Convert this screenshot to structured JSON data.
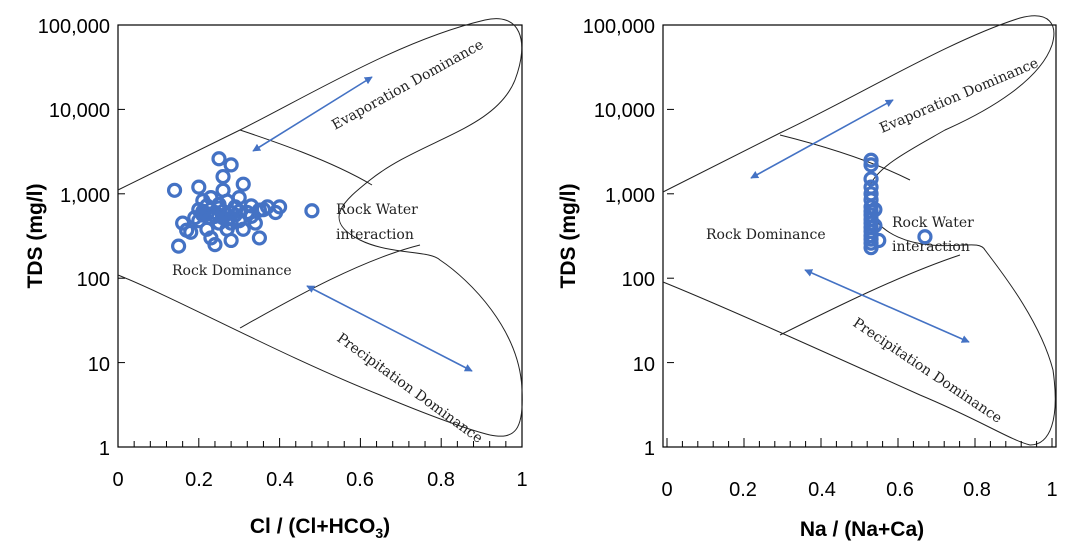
{
  "chart_data": [
    {
      "type": "scatter",
      "title": "",
      "xlabel_main": "Cl / (Cl+HCO",
      "xlabel_sub": "3",
      "xlabel_close": ")",
      "ylabel": "TDS (mg/l)",
      "xlim": [
        0,
        1
      ],
      "ylim": [
        1,
        100000
      ],
      "yscale": "log",
      "x_ticks": [
        0,
        0.2,
        0.4,
        0.6,
        0.8,
        1
      ],
      "x_tick_labels": [
        "0",
        "0.2",
        "0.4",
        "0.6",
        "0.8",
        "1"
      ],
      "y_ticks": [
        1,
        10,
        100,
        1000,
        10000,
        100000
      ],
      "y_tick_labels": [
        "1",
        "10",
        "100",
        "1,000",
        "10,000",
        "100,000"
      ],
      "marker_color": "#4472c4",
      "region_labels": {
        "evaporation": "Evaporation Dominance",
        "rock_water": [
          "Rock Water",
          "interaction"
        ],
        "rock": "Rock Dominance",
        "precipitation": "Precipitation Dominance"
      },
      "points": [
        [
          0.14,
          1100
        ],
        [
          0.15,
          240
        ],
        [
          0.16,
          450
        ],
        [
          0.17,
          370
        ],
        [
          0.18,
          350
        ],
        [
          0.19,
          520
        ],
        [
          0.2,
          1200
        ],
        [
          0.2,
          650
        ],
        [
          0.2,
          480
        ],
        [
          0.21,
          830
        ],
        [
          0.21,
          560
        ],
        [
          0.22,
          380
        ],
        [
          0.22,
          720
        ],
        [
          0.23,
          900
        ],
        [
          0.23,
          300
        ],
        [
          0.24,
          600
        ],
        [
          0.24,
          250
        ],
        [
          0.25,
          2600
        ],
        [
          0.25,
          450
        ],
        [
          0.25,
          750
        ],
        [
          0.26,
          1600
        ],
        [
          0.26,
          1100
        ],
        [
          0.26,
          520
        ],
        [
          0.27,
          380
        ],
        [
          0.27,
          820
        ],
        [
          0.28,
          2200
        ],
        [
          0.28,
          280
        ],
        [
          0.28,
          600
        ],
        [
          0.29,
          700
        ],
        [
          0.3,
          480
        ],
        [
          0.3,
          900
        ],
        [
          0.31,
          1300
        ],
        [
          0.31,
          380
        ],
        [
          0.32,
          600
        ],
        [
          0.33,
          720
        ],
        [
          0.34,
          450
        ],
        [
          0.35,
          300
        ],
        [
          0.36,
          650
        ],
        [
          0.37,
          700
        ],
        [
          0.39,
          600
        ],
        [
          0.4,
          700
        ],
        [
          0.48,
          630
        ],
        [
          0.22,
          580
        ],
        [
          0.24,
          540
        ],
        [
          0.27,
          500
        ],
        [
          0.29,
          560
        ],
        [
          0.23,
          520
        ],
        [
          0.26,
          620
        ],
        [
          0.3,
          620
        ],
        [
          0.21,
          620
        ],
        [
          0.25,
          680
        ],
        [
          0.28,
          450
        ],
        [
          0.33,
          540
        ],
        [
          0.35,
          640
        ]
      ]
    },
    {
      "type": "scatter",
      "title": "",
      "xlabel_main": "Na / (Na+Ca)",
      "xlabel_sub": "",
      "xlabel_close": "",
      "ylabel": "TDS (mg/l)",
      "xlim": [
        0,
        1
      ],
      "ylim": [
        1,
        100000
      ],
      "yscale": "log",
      "x_ticks": [
        0,
        0.2,
        0.4,
        0.6,
        0.8,
        1
      ],
      "x_tick_labels": [
        "0",
        "0.2",
        "0.4",
        "0.6",
        "0.8",
        "1"
      ],
      "y_ticks": [
        1,
        10,
        100,
        1000,
        10000,
        100000
      ],
      "y_tick_labels": [
        "1",
        "10",
        "100",
        "1,000",
        "10,000",
        "100,000"
      ],
      "marker_color": "#4472c4",
      "region_labels": {
        "evaporation": "Evaporation Dominance",
        "rock_water": [
          "Rock Water",
          "interaction"
        ],
        "rock": "Rock Dominance",
        "precipitation": "Precipitation Dominance"
      },
      "points": [
        [
          0.53,
          2500
        ],
        [
          0.53,
          2200
        ],
        [
          0.53,
          1500
        ],
        [
          0.53,
          1200
        ],
        [
          0.53,
          1000
        ],
        [
          0.53,
          850
        ],
        [
          0.53,
          700
        ],
        [
          0.53,
          620
        ],
        [
          0.53,
          560
        ],
        [
          0.53,
          500
        ],
        [
          0.53,
          450
        ],
        [
          0.53,
          400
        ],
        [
          0.53,
          360
        ],
        [
          0.53,
          320
        ],
        [
          0.53,
          290
        ],
        [
          0.53,
          260
        ],
        [
          0.53,
          230
        ],
        [
          0.54,
          650
        ],
        [
          0.54,
          420
        ],
        [
          0.55,
          280
        ],
        [
          0.67,
          310
        ]
      ]
    }
  ]
}
